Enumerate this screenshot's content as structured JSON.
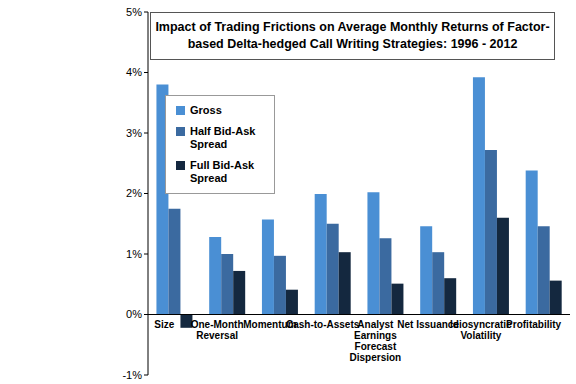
{
  "chart_data": {
    "type": "bar",
    "title": "Impact of Trading Frictions on Average Monthly Returns of Factor-based Delta-hedged Call Writing Strategies: 1996 - 2012",
    "categories": [
      "Size",
      "One-Month Reversal",
      "Momentum",
      "Cash-to-Assets",
      "Analyst Earnings Forecast Dispersion",
      "Net Issuance",
      "Idiosyncratic Volatility",
      "Profitability"
    ],
    "series": [
      {
        "name": "Gross",
        "color": "#4a8fd4",
        "values": [
          3.8,
          1.28,
          1.57,
          1.99,
          2.02,
          1.46,
          3.92,
          2.38
        ]
      },
      {
        "name": "Half Bid-Ask Spread",
        "color": "#3b6aa0",
        "values": [
          1.75,
          1.0,
          0.97,
          1.5,
          1.26,
          1.03,
          2.72,
          1.46
        ]
      },
      {
        "name": "Full Bid-Ask Spread",
        "color": "#14283f",
        "values": [
          -0.22,
          0.72,
          0.41,
          1.03,
          0.51,
          0.6,
          1.6,
          0.56
        ]
      }
    ],
    "ylim": [
      -1,
      5
    ],
    "yticks": [
      {
        "value": -1,
        "label": "-1%"
      },
      {
        "value": 0,
        "label": "0%"
      },
      {
        "value": 1,
        "label": "1%"
      },
      {
        "value": 2,
        "label": "2%"
      },
      {
        "value": 3,
        "label": "3%"
      },
      {
        "value": 4,
        "label": "4%"
      },
      {
        "value": 5,
        "label": "5%"
      }
    ],
    "grid": false,
    "legend": "top-left"
  }
}
